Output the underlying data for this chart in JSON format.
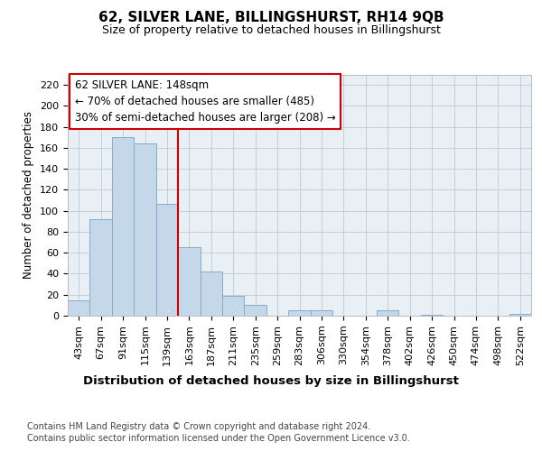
{
  "title": "62, SILVER LANE, BILLINGSHURST, RH14 9QB",
  "subtitle": "Size of property relative to detached houses in Billingshurst",
  "xlabel": "Distribution of detached houses by size in Billingshurst",
  "ylabel": "Number of detached properties",
  "categories": [
    "43sqm",
    "67sqm",
    "91sqm",
    "115sqm",
    "139sqm",
    "163sqm",
    "187sqm",
    "211sqm",
    "235sqm",
    "259sqm",
    "283sqm",
    "306sqm",
    "330sqm",
    "354sqm",
    "378sqm",
    "402sqm",
    "426sqm",
    "450sqm",
    "474sqm",
    "498sqm",
    "522sqm"
  ],
  "values": [
    15,
    92,
    170,
    164,
    107,
    65,
    42,
    19,
    10,
    0,
    5,
    5,
    0,
    0,
    5,
    0,
    1,
    0,
    0,
    0,
    2
  ],
  "bar_color": "#c5d8ea",
  "bar_edge_color": "#85aac8",
  "vline_color": "#cc0000",
  "annotation_text": "62 SILVER LANE: 148sqm\n← 70% of detached houses are smaller (485)\n30% of semi-detached houses are larger (208) →",
  "annotation_box_color": "#ffffff",
  "annotation_box_edge": "#cc0000",
  "grid_color": "#c5cdd8",
  "plot_bg_color": "#e8eff5",
  "footer_line1": "Contains HM Land Registry data © Crown copyright and database right 2024.",
  "footer_line2": "Contains public sector information licensed under the Open Government Licence v3.0.",
  "ylim": [
    0,
    230
  ],
  "yticks": [
    0,
    20,
    40,
    60,
    80,
    100,
    120,
    140,
    160,
    180,
    200,
    220
  ]
}
